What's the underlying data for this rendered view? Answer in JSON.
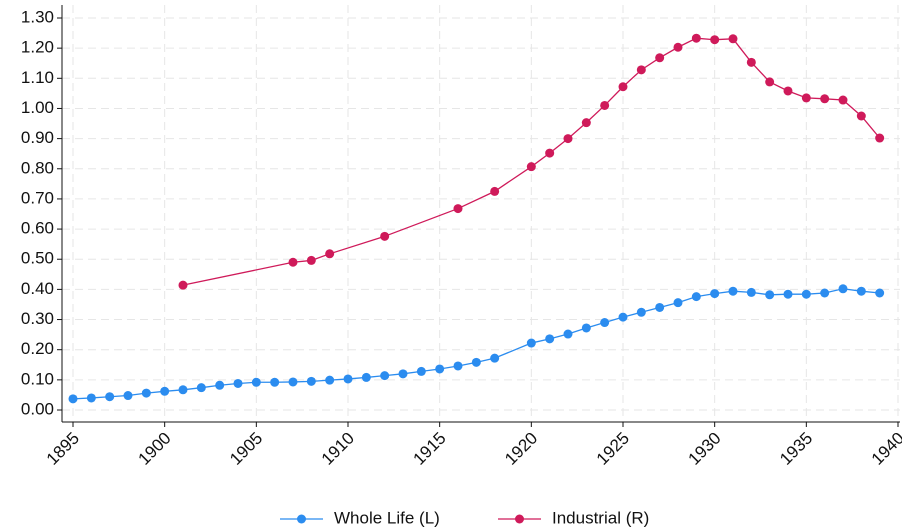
{
  "chart_data": {
    "type": "line",
    "xlim": [
      1895,
      1940
    ],
    "xticks": [
      1895,
      1900,
      1905,
      1910,
      1915,
      1920,
      1925,
      1930,
      1935,
      1940
    ],
    "ylim": [
      0,
      1.3
    ],
    "yticks": [
      {
        "value": 0,
        "label": "0.00"
      },
      {
        "value": 0.1,
        "label": "0.10"
      },
      {
        "value": 0.2,
        "label": "0.20"
      },
      {
        "value": 0.3,
        "label": "0.30"
      },
      {
        "value": 0.4,
        "label": "0.40"
      },
      {
        "value": 0.5,
        "label": "0.50"
      },
      {
        "value": 0.6,
        "label": "0.60"
      },
      {
        "value": 0.7,
        "label": "0.70"
      },
      {
        "value": 0.8,
        "label": "0.80"
      },
      {
        "value": 0.9,
        "label": "0.90"
      },
      {
        "value": 1.0,
        "label": "1.00"
      },
      {
        "value": 1.1,
        "label": "1.10"
      },
      {
        "value": 1.2,
        "label": "1.20"
      },
      {
        "value": 1.3,
        "label": "1.30"
      }
    ],
    "grid": true,
    "legend": "bottom",
    "series": [
      {
        "name": "Whole Life (L)",
        "color": "#2b8cef",
        "x": [
          1895,
          1896,
          1897,
          1898,
          1899,
          1900,
          1901,
          1902,
          1903,
          1904,
          1905,
          1906,
          1907,
          1908,
          1909,
          1910,
          1911,
          1912,
          1913,
          1914,
          1915,
          1916,
          1917,
          1918,
          1920,
          1921,
          1922,
          1923,
          1924,
          1925,
          1926,
          1927,
          1928,
          1929,
          1930,
          1931,
          1932,
          1933,
          1934,
          1935,
          1936,
          1937,
          1938,
          1939
        ],
        "values": [
          0.037,
          0.04,
          0.044,
          0.048,
          0.056,
          0.062,
          0.067,
          0.074,
          0.082,
          0.088,
          0.092,
          0.092,
          0.093,
          0.095,
          0.099,
          0.103,
          0.108,
          0.114,
          0.12,
          0.128,
          0.136,
          0.146,
          0.158,
          0.172,
          0.222,
          0.236,
          0.252,
          0.272,
          0.29,
          0.308,
          0.324,
          0.34,
          0.356,
          0.376,
          0.386,
          0.394,
          0.39,
          0.382,
          0.384,
          0.384,
          0.388,
          0.402,
          0.394,
          0.388
        ]
      },
      {
        "name": "Industrial (R)",
        "color": "#cf1a5a",
        "x": [
          1901,
          1907,
          1908,
          1909,
          1912,
          1916,
          1918,
          1920,
          1921,
          1922,
          1923,
          1924,
          1925,
          1926,
          1927,
          1928,
          1929,
          1930,
          1931,
          1932,
          1933,
          1934,
          1935,
          1936,
          1937,
          1938,
          1939
        ],
        "values": [
          0.414,
          0.49,
          0.496,
          0.518,
          0.576,
          0.668,
          0.725,
          0.807,
          0.852,
          0.9,
          0.953,
          1.01,
          1.072,
          1.128,
          1.168,
          1.203,
          1.233,
          1.228,
          1.231,
          1.153,
          1.088,
          1.058,
          1.035,
          1.032,
          1.028,
          0.975,
          0.902
        ]
      }
    ]
  }
}
